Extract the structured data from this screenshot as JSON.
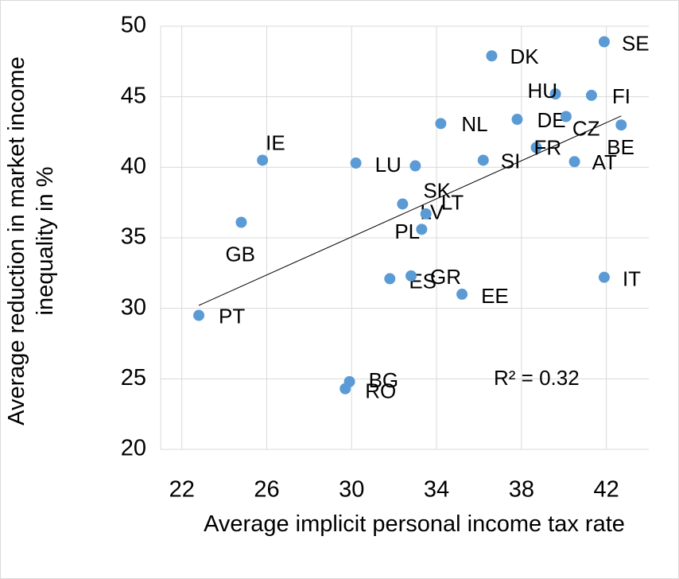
{
  "chart_data": {
    "type": "scatter",
    "x_label": "Average implicit personal income tax rate",
    "y_label": "Average reduction in market income inequality in %",
    "annotation": "R² = 0.32",
    "trendline": true,
    "color": "#5b9bd5",
    "grid": true,
    "xlim": [
      21,
      44
    ],
    "xticks": [
      22,
      26,
      30,
      34,
      38,
      42
    ],
    "ylim": [
      20,
      50
    ],
    "yticks": [
      20,
      25,
      30,
      35,
      40,
      45,
      50
    ],
    "labels": [
      "SE",
      "DK",
      "HU",
      "FI",
      "DE",
      "CZ",
      "NL",
      "BE",
      "FR",
      "IE",
      "SI",
      "AT",
      "LU",
      "SK",
      "LV",
      "LT",
      "PL",
      "GB",
      "ES",
      "GR",
      "EE",
      "IT",
      "PT",
      "BG",
      "RO"
    ],
    "x": [
      41.9,
      36.6,
      39.6,
      41.3,
      37.8,
      40.1,
      34.2,
      42.7,
      38.7,
      25.8,
      36.2,
      40.5,
      30.2,
      33.0,
      32.4,
      33.5,
      33.3,
      24.8,
      31.8,
      32.8,
      35.2,
      41.9,
      22.8,
      29.9,
      29.7
    ],
    "y": [
      48.9,
      47.9,
      45.2,
      45.1,
      43.4,
      43.6,
      43.1,
      43.0,
      41.4,
      40.5,
      40.5,
      40.4,
      40.3,
      40.1,
      37.4,
      36.7,
      35.6,
      36.1,
      32.1,
      32.3,
      31.0,
      32.2,
      29.5,
      24.8,
      24.3
    ]
  }
}
